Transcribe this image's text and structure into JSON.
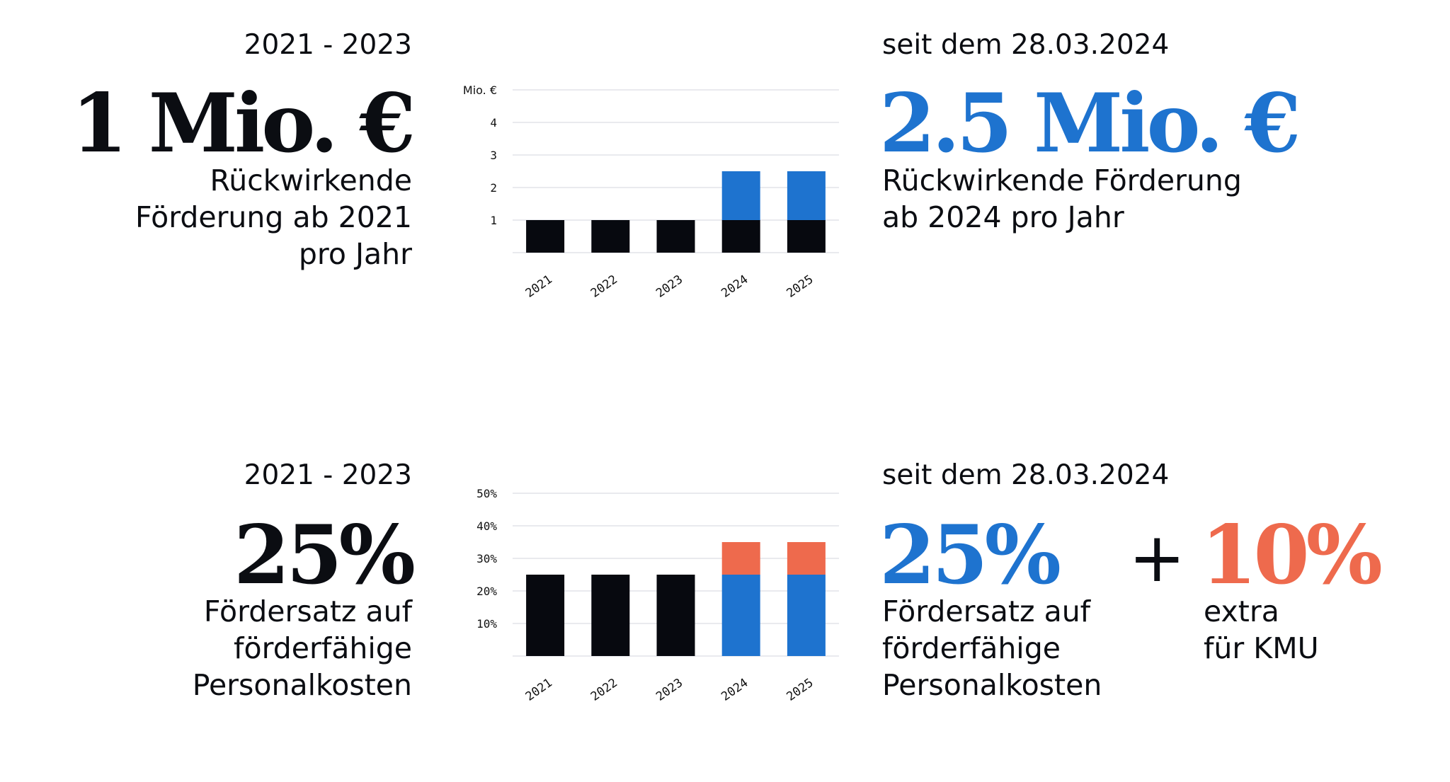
{
  "colors": {
    "black": "#07090f",
    "blue": "#1e73cf",
    "coral": "#ee6a4d"
  },
  "row1": {
    "left": {
      "period": "2021 - 2023",
      "amount": "1 Mio. €",
      "desc_lines": [
        "Rückwirkende",
        "Förderung ab 2021",
        "pro Jahr"
      ]
    },
    "right": {
      "period": "seit dem 28.03.2024",
      "amount": "2.5 Mio. €",
      "desc_lines": [
        "Rückwirkende Förderung",
        "ab 2024 pro Jahr"
      ]
    }
  },
  "row2": {
    "left": {
      "period": "2021 - 2023",
      "rate": "25%",
      "desc_lines": [
        "Fördersatz auf",
        "förderfähige",
        "Personalkosten"
      ]
    },
    "right": {
      "period": "seit dem 28.03.2024",
      "rate": "25%",
      "desc_lines": [
        "Fördersatz auf",
        "förderfähige",
        "Personalkosten"
      ],
      "plus": "+",
      "extra_rate": "10%",
      "extra_lines": [
        "extra",
        "für KMU"
      ]
    }
  },
  "chart_data": [
    {
      "type": "bar",
      "stacked": true,
      "categories": [
        "2021",
        "2022",
        "2023",
        "2024",
        "2025"
      ],
      "y_tick_labels": [
        "Mio. €",
        "4",
        "3",
        "2",
        "1"
      ],
      "ylim": [
        0,
        5
      ],
      "grid": true,
      "series": [
        {
          "color": "#07090f",
          "values": [
            1,
            1,
            1,
            1,
            1
          ]
        },
        {
          "color": "#1e73cf",
          "values": [
            0,
            0,
            0,
            1.5,
            1.5
          ]
        }
      ]
    },
    {
      "type": "bar",
      "stacked": true,
      "categories": [
        "2021",
        "2022",
        "2023",
        "2024",
        "2025"
      ],
      "y_tick_labels": [
        "50%",
        "40%",
        "30%",
        "20%",
        "10%"
      ],
      "ylim": [
        0,
        50
      ],
      "grid": true,
      "series": [
        {
          "color": "#07090f",
          "values": [
            25,
            25,
            25,
            0,
            0
          ]
        },
        {
          "color": "#1e73cf",
          "values": [
            0,
            0,
            0,
            25,
            25
          ]
        },
        {
          "color": "#ee6a4d",
          "values": [
            0,
            0,
            0,
            10,
            10
          ]
        }
      ]
    }
  ]
}
